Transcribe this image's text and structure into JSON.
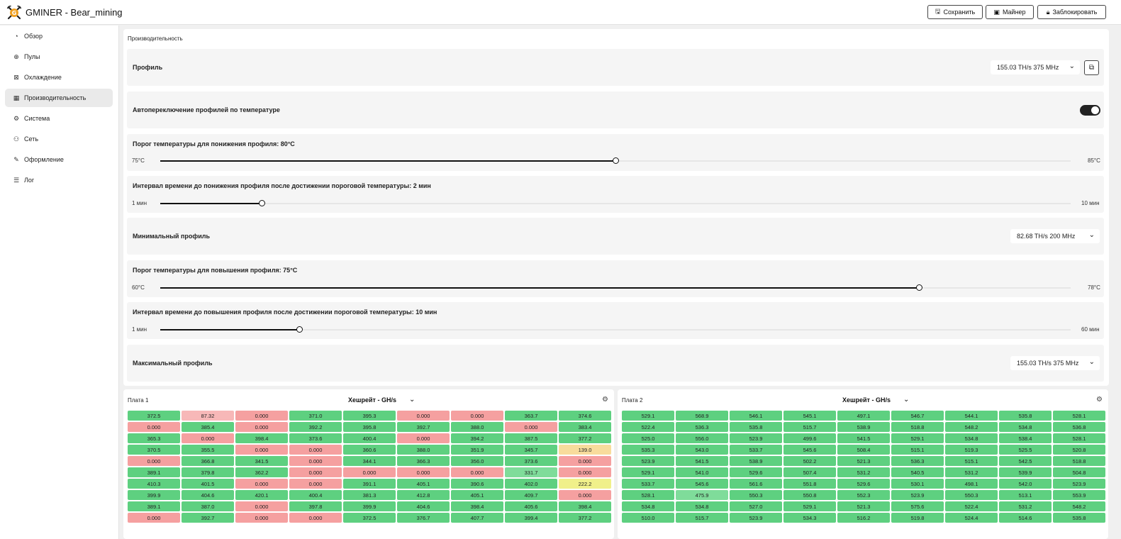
{
  "app": {
    "title": "GMINER - Bear_mining"
  },
  "top_buttons": {
    "save": "Сохранить",
    "miner": "Майнер",
    "lock": "Заблокировать"
  },
  "sidebar": {
    "items": [
      {
        "label": "Обзор",
        "icon": "dashboard-icon"
      },
      {
        "label": "Пулы",
        "icon": "globe-icon"
      },
      {
        "label": "Охлаждение",
        "icon": "fan-icon"
      },
      {
        "label": "Производительность",
        "icon": "performance-icon"
      },
      {
        "label": "Система",
        "icon": "gear-icon"
      },
      {
        "label": "Сеть",
        "icon": "network-icon"
      },
      {
        "label": "Оформление",
        "icon": "brush-icon"
      },
      {
        "label": "Лог",
        "icon": "list-icon"
      }
    ],
    "active_index": 3
  },
  "performance": {
    "section_title": "Производительность",
    "profile": {
      "label": "Профиль",
      "value": "155.03 TH/s 375 MHz"
    },
    "auto_switch": {
      "label": "Автопереключение профилей по температуре",
      "enabled": true
    },
    "down_threshold": {
      "label": "Порог температуры для понижения профиля: 80°C",
      "min": "75°C",
      "max": "85°C",
      "fraction": 0.5
    },
    "down_interval": {
      "label": "Интервал времени до понижения профиля после достижении пороговой температуры: 2 мин",
      "min": "1 мин",
      "max": "10 мин",
      "fraction": 0.111
    },
    "min_profile": {
      "label": "Минимальный профиль",
      "value": "82.68 TH/s 200 MHz"
    },
    "up_threshold": {
      "label": "Порог температуры для повышения профиля: 75°C",
      "min": "60°C",
      "max": "78°C",
      "fraction": 0.833
    },
    "up_interval": {
      "label": "Интервал времени до повышения профиля после достижении пороговой температуры: 10 мин",
      "min": "1 мин",
      "max": "60 мин",
      "fraction": 0.153
    },
    "max_profile": {
      "label": "Максимальный профиль",
      "value": "155.03 TH/s 375 MHz"
    }
  },
  "boards": [
    {
      "title": "Плата 1",
      "metric": "Хешрейт - GH/s",
      "rows": [
        [
          [
            "372.5",
            "g"
          ],
          [
            "87.32",
            "lr"
          ],
          [
            "0.000",
            "r"
          ],
          [
            "371.0",
            "g"
          ],
          [
            "395.3",
            "g"
          ],
          [
            "0.000",
            "r"
          ],
          [
            "0.000",
            "r"
          ],
          [
            "363.7",
            "g"
          ],
          [
            "374.6",
            "g"
          ]
        ],
        [
          [
            "0.000",
            "r"
          ],
          [
            "385.4",
            "g"
          ],
          [
            "0.000",
            "r"
          ],
          [
            "392.2",
            "g"
          ],
          [
            "395.8",
            "g"
          ],
          [
            "392.7",
            "g"
          ],
          [
            "388.0",
            "g"
          ],
          [
            "0.000",
            "r"
          ],
          [
            "383.4",
            "g"
          ]
        ],
        [
          [
            "365.3",
            "g"
          ],
          [
            "0.000",
            "r"
          ],
          [
            "398.4",
            "g"
          ],
          [
            "373.6",
            "g"
          ],
          [
            "400.4",
            "g"
          ],
          [
            "0.000",
            "r"
          ],
          [
            "394.2",
            "g"
          ],
          [
            "387.5",
            "g"
          ],
          [
            "377.2",
            "g"
          ]
        ],
        [
          [
            "370.5",
            "g"
          ],
          [
            "355.5",
            "g"
          ],
          [
            "0.000",
            "r"
          ],
          [
            "0.000",
            "r"
          ],
          [
            "360.6",
            "g"
          ],
          [
            "388.0",
            "g"
          ],
          [
            "351.9",
            "g"
          ],
          [
            "345.7",
            "g"
          ],
          [
            "139.0",
            "o"
          ]
        ],
        [
          [
            "0.000",
            "r"
          ],
          [
            "366.8",
            "g"
          ],
          [
            "341.5",
            "g"
          ],
          [
            "0.000",
            "r"
          ],
          [
            "344.1",
            "g"
          ],
          [
            "366.3",
            "g"
          ],
          [
            "356.0",
            "g"
          ],
          [
            "373.6",
            "g"
          ],
          [
            "0.000",
            "r"
          ]
        ],
        [
          [
            "389.1",
            "g"
          ],
          [
            "379.8",
            "g"
          ],
          [
            "362.2",
            "g"
          ],
          [
            "0.000",
            "r"
          ],
          [
            "0.000",
            "r"
          ],
          [
            "0.000",
            "r"
          ],
          [
            "0.000",
            "r"
          ],
          [
            "331.7",
            "lg"
          ],
          [
            "0.000",
            "r"
          ]
        ],
        [
          [
            "410.3",
            "g"
          ],
          [
            "401.5",
            "g"
          ],
          [
            "0.000",
            "r"
          ],
          [
            "0.000",
            "r"
          ],
          [
            "391.1",
            "g"
          ],
          [
            "405.1",
            "g"
          ],
          [
            "390.6",
            "g"
          ],
          [
            "402.0",
            "g"
          ],
          [
            "222.2",
            "y"
          ]
        ],
        [
          [
            "399.9",
            "g"
          ],
          [
            "404.6",
            "g"
          ],
          [
            "420.1",
            "g"
          ],
          [
            "400.4",
            "g"
          ],
          [
            "381.3",
            "g"
          ],
          [
            "412.8",
            "g"
          ],
          [
            "405.1",
            "g"
          ],
          [
            "409.7",
            "g"
          ],
          [
            "0.000",
            "r"
          ]
        ],
        [
          [
            "389.1",
            "g"
          ],
          [
            "387.0",
            "g"
          ],
          [
            "0.000",
            "r"
          ],
          [
            "397.8",
            "g"
          ],
          [
            "399.9",
            "g"
          ],
          [
            "404.6",
            "g"
          ],
          [
            "398.4",
            "g"
          ],
          [
            "405.6",
            "g"
          ],
          [
            "398.4",
            "g"
          ]
        ],
        [
          [
            "0.000",
            "r"
          ],
          [
            "392.7",
            "g"
          ],
          [
            "0.000",
            "r"
          ],
          [
            "0.000",
            "r"
          ],
          [
            "372.5",
            "g"
          ],
          [
            "376.7",
            "g"
          ],
          [
            "407.7",
            "g"
          ],
          [
            "399.4",
            "g"
          ],
          [
            "377.2",
            "g"
          ]
        ]
      ]
    },
    {
      "title": "Плата 2",
      "metric": "Хешрейт - GH/s",
      "rows": [
        [
          [
            "529.1",
            "g"
          ],
          [
            "568.9",
            "g"
          ],
          [
            "546.1",
            "g"
          ],
          [
            "545.1",
            "g"
          ],
          [
            "497.1",
            "g"
          ],
          [
            "546.7",
            "g"
          ],
          [
            "544.1",
            "g"
          ],
          [
            "535.8",
            "g"
          ],
          [
            "528.1",
            "g"
          ]
        ],
        [
          [
            "522.4",
            "g"
          ],
          [
            "536.3",
            "g"
          ],
          [
            "535.8",
            "g"
          ],
          [
            "515.7",
            "g"
          ],
          [
            "538.9",
            "g"
          ],
          [
            "518.8",
            "g"
          ],
          [
            "548.2",
            "g"
          ],
          [
            "534.8",
            "g"
          ],
          [
            "536.8",
            "g"
          ]
        ],
        [
          [
            "525.0",
            "g"
          ],
          [
            "556.0",
            "g"
          ],
          [
            "523.9",
            "g"
          ],
          [
            "499.6",
            "g"
          ],
          [
            "541.5",
            "g"
          ],
          [
            "529.1",
            "g"
          ],
          [
            "534.8",
            "g"
          ],
          [
            "538.4",
            "g"
          ],
          [
            "528.1",
            "g"
          ]
        ],
        [
          [
            "535.3",
            "g"
          ],
          [
            "543.0",
            "g"
          ],
          [
            "533.7",
            "g"
          ],
          [
            "545.6",
            "g"
          ],
          [
            "508.4",
            "g"
          ],
          [
            "515.1",
            "g"
          ],
          [
            "519.3",
            "g"
          ],
          [
            "525.5",
            "g"
          ],
          [
            "520.8",
            "g"
          ]
        ],
        [
          [
            "523.9",
            "g"
          ],
          [
            "541.5",
            "g"
          ],
          [
            "538.9",
            "g"
          ],
          [
            "502.2",
            "g"
          ],
          [
            "521.3",
            "g"
          ],
          [
            "536.3",
            "g"
          ],
          [
            "515.1",
            "g"
          ],
          [
            "542.5",
            "g"
          ],
          [
            "518.8",
            "g"
          ]
        ],
        [
          [
            "529.1",
            "g"
          ],
          [
            "541.0",
            "g"
          ],
          [
            "529.6",
            "g"
          ],
          [
            "507.4",
            "g"
          ],
          [
            "531.2",
            "g"
          ],
          [
            "540.5",
            "g"
          ],
          [
            "531.2",
            "g"
          ],
          [
            "539.9",
            "g"
          ],
          [
            "504.8",
            "g"
          ]
        ],
        [
          [
            "533.7",
            "g"
          ],
          [
            "545.6",
            "g"
          ],
          [
            "561.6",
            "g"
          ],
          [
            "551.8",
            "g"
          ],
          [
            "529.6",
            "g"
          ],
          [
            "530.1",
            "g"
          ],
          [
            "498.1",
            "g"
          ],
          [
            "542.0",
            "g"
          ],
          [
            "523.9",
            "g"
          ]
        ],
        [
          [
            "528.1",
            "g"
          ],
          [
            "475.9",
            "lg"
          ],
          [
            "550.3",
            "g"
          ],
          [
            "550.8",
            "g"
          ],
          [
            "552.3",
            "g"
          ],
          [
            "523.9",
            "g"
          ],
          [
            "550.3",
            "g"
          ],
          [
            "513.1",
            "g"
          ],
          [
            "553.9",
            "g"
          ]
        ],
        [
          [
            "534.8",
            "g"
          ],
          [
            "534.8",
            "g"
          ],
          [
            "527.0",
            "g"
          ],
          [
            "529.1",
            "g"
          ],
          [
            "521.3",
            "g"
          ],
          [
            "575.6",
            "g"
          ],
          [
            "522.4",
            "g"
          ],
          [
            "531.2",
            "g"
          ],
          [
            "548.2",
            "g"
          ]
        ],
        [
          [
            "510.0",
            "g"
          ],
          [
            "515.7",
            "g"
          ],
          [
            "523.9",
            "g"
          ],
          [
            "534.3",
            "g"
          ],
          [
            "516.2",
            "g"
          ],
          [
            "519.8",
            "g"
          ],
          [
            "524.4",
            "g"
          ],
          [
            "514.6",
            "g"
          ],
          [
            "535.8",
            "g"
          ]
        ]
      ]
    }
  ]
}
